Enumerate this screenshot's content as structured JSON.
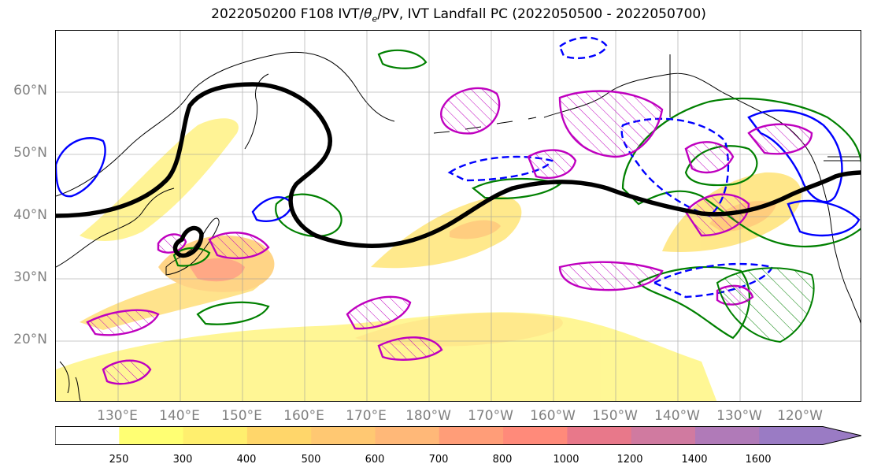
{
  "title": "2022050200 F108 IVT/θe/PV, IVT Landfall PC (2022050500 - 2022050700)",
  "map": {
    "lat_labels": [
      "60°N",
      "50°N",
      "40°N",
      "30°N",
      "20°N"
    ],
    "lon_labels": [
      "130°E",
      "140°E",
      "150°E",
      "160°E",
      "170°E",
      "180°W",
      "170°W",
      "160°W",
      "150°W",
      "140°W",
      "130°W",
      "120°W"
    ],
    "extent": {
      "lon_min": 120,
      "lon_max": 250,
      "lat_min": 10,
      "lat_max": 70
    },
    "gridlines": true,
    "contour_colors": {
      "black": "#000000",
      "green": "#008000",
      "blue": "#0000ff",
      "magenta": "#bf00bf"
    }
  },
  "colorbar": {
    "ticks": [
      "250",
      "300",
      "400",
      "500",
      "600",
      "700",
      "800",
      "1000",
      "1200",
      "1400",
      "1600"
    ],
    "colors": [
      "#ffffff",
      "#ffff73",
      "#ffef6e",
      "#ffd66a",
      "#ffc872",
      "#ffb878",
      "#ff9d78",
      "#ff8a7a",
      "#e8788a",
      "#d07aa0",
      "#b07ab8",
      "#9a7bc4"
    ],
    "extend": "max"
  }
}
